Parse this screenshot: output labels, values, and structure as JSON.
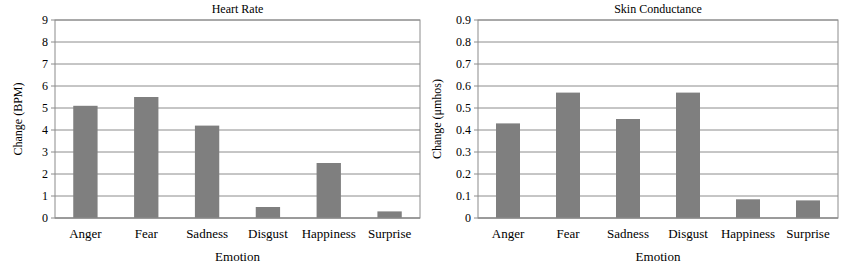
{
  "chart_data": [
    {
      "type": "bar",
      "title": "Heart Rate",
      "x_label": "Emotion",
      "y_label": "Change (BPM)",
      "categories": [
        "Anger",
        "Fear",
        "Sadness",
        "Disgust",
        "Happiness",
        "Surprise"
      ],
      "values": [
        5.1,
        5.5,
        4.2,
        0.5,
        2.5,
        0.3
      ],
      "color": "#7f7f7f",
      "ylim": [
        0,
        9
      ],
      "yticks": [
        0,
        1,
        2,
        3,
        4,
        5,
        6,
        7,
        8,
        9
      ],
      "grid": true
    },
    {
      "type": "bar",
      "title": "Skin Conductance",
      "x_label": "Emotion",
      "y_label": "Change (μmhos)",
      "categories": [
        "Anger",
        "Fear",
        "Sadness",
        "Disgust",
        "Happiness",
        "Surprise"
      ],
      "values": [
        0.43,
        0.57,
        0.45,
        0.57,
        0.085,
        0.08
      ],
      "color": "#7f7f7f",
      "ylim": [
        0,
        0.9
      ],
      "yticks": [
        0,
        0.1,
        0.2,
        0.3,
        0.4,
        0.5,
        0.6,
        0.7,
        0.8,
        0.9
      ],
      "grid": true
    }
  ]
}
